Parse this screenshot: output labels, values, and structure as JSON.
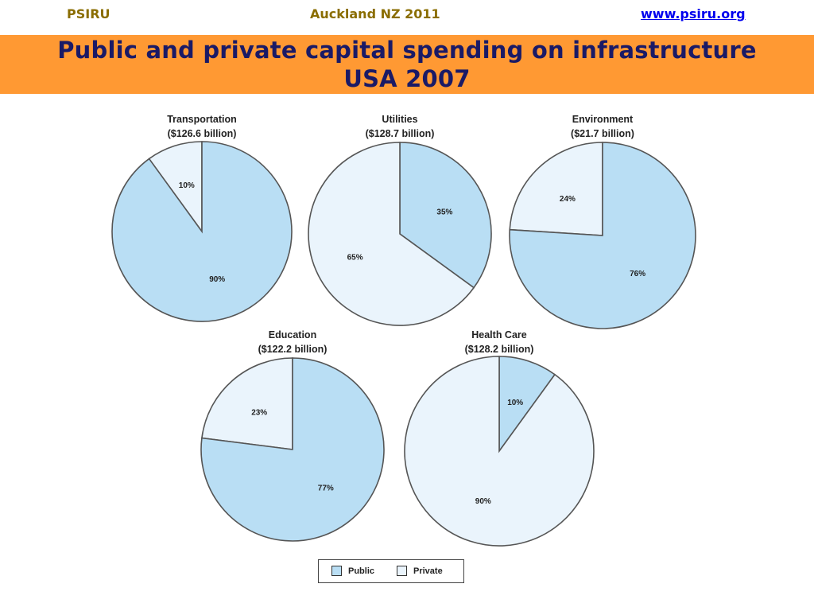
{
  "header": {
    "org": "PSIRU",
    "event": "Auckland NZ 2011",
    "website": "www.psiru.org"
  },
  "slide": {
    "title": "Public and private capital spending on infrastructure USA 2007"
  },
  "colors": {
    "public": "#b9def4",
    "private": "#eaf4fc",
    "stroke": "#555555",
    "banner": "#ff9933"
  },
  "legend": {
    "public": "Public",
    "private": "Private"
  },
  "chart_data": [
    {
      "type": "pie",
      "title": "Transportation",
      "subtitle": "($126.6 billion)",
      "categories": [
        "Public",
        "Private"
      ],
      "values": [
        90,
        10
      ],
      "labels": [
        "90%",
        "10%"
      ]
    },
    {
      "type": "pie",
      "title": "Utilities",
      "subtitle": "($128.7 billion)",
      "categories": [
        "Public",
        "Private"
      ],
      "values": [
        35,
        65
      ],
      "labels": [
        "35%",
        "65%"
      ]
    },
    {
      "type": "pie",
      "title": "Environment",
      "subtitle": "($21.7 billion)",
      "categories": [
        "Public",
        "Private"
      ],
      "values": [
        76,
        24
      ],
      "labels": [
        "76%",
        "24%"
      ]
    },
    {
      "type": "pie",
      "title": "Education",
      "subtitle": "($122.2 billion)",
      "categories": [
        "Public",
        "Private"
      ],
      "values": [
        77,
        23
      ],
      "labels": [
        "77%",
        "23%"
      ]
    },
    {
      "type": "pie",
      "title": "Health Care",
      "subtitle": "($128.2 billion)",
      "categories": [
        "Public",
        "Private"
      ],
      "values": [
        10,
        90
      ],
      "labels": [
        "10%",
        "90%"
      ]
    }
  ]
}
